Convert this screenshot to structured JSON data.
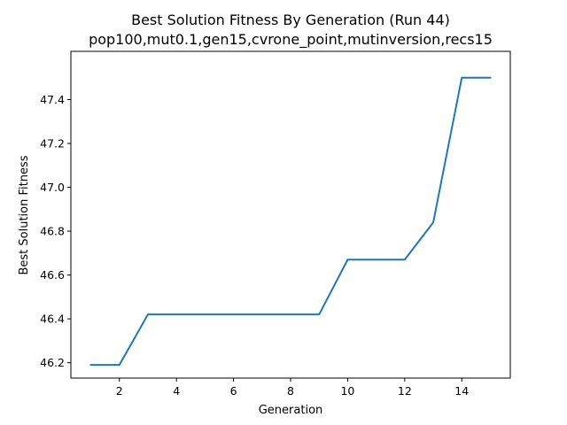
{
  "chart_data": {
    "type": "line",
    "title": "Best Solution Fitness By Generation (Run 44)",
    "subtitle": "pop100,mut0.1,gen15,cvrone_point,mutinversion,recs15",
    "xlabel": "Generation",
    "ylabel": "Best Solution Fitness",
    "xlim": [
      0.3,
      15.7
    ],
    "ylim": [
      46.13,
      47.62
    ],
    "xticks": [
      2,
      4,
      6,
      8,
      10,
      12,
      14
    ],
    "yticks": [
      46.2,
      46.4,
      46.6,
      46.8,
      47.0,
      47.2,
      47.4
    ],
    "xtick_labels": [
      "2",
      "4",
      "6",
      "8",
      "10",
      "12",
      "14"
    ],
    "ytick_labels": [
      "46.2",
      "46.4",
      "46.6",
      "46.8",
      "47.0",
      "47.2",
      "47.4"
    ],
    "grid": false,
    "series": [
      {
        "color": "#1f77b4",
        "x": [
          1,
          2,
          3,
          4,
          5,
          6,
          7,
          8,
          9,
          10,
          11,
          12,
          13,
          14,
          15
        ],
        "y": [
          46.19,
          46.19,
          46.42,
          46.42,
          46.42,
          46.42,
          46.42,
          46.42,
          46.42,
          46.67,
          46.67,
          46.67,
          46.84,
          47.5,
          47.5
        ]
      }
    ]
  }
}
